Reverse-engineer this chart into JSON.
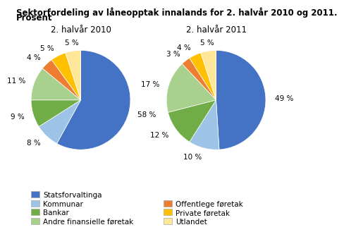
{
  "title_line1": "Sektorfordeling av låneopptak innalands for 2. halvår 2010 og 2011.",
  "title_line2": "Prosent",
  "pie2010": {
    "label": "2. halvår 2010",
    "values": [
      58,
      8,
      9,
      11,
      4,
      5,
      5
    ],
    "pct_labels": [
      "58 %",
      "8 %",
      "9 %",
      "11 %",
      "4 %",
      "5 %",
      "5 %"
    ],
    "colors": [
      "#4472C4",
      "#9DC3E6",
      "#70AD47",
      "#A9D18E",
      "#ED7D31",
      "#FFC000",
      "#FFE699"
    ],
    "startangle": 90
  },
  "pie2011": {
    "label": "2. halvår 2011",
    "values": [
      49,
      10,
      12,
      17,
      3,
      4,
      5
    ],
    "pct_labels": [
      "49 %",
      "10 %",
      "12 %",
      "17 %",
      "3 %",
      "4 %",
      "5 %"
    ],
    "colors": [
      "#4472C4",
      "#9DC3E6",
      "#70AD47",
      "#A9D18E",
      "#ED7D31",
      "#FFC000",
      "#FFE699"
    ],
    "startangle": 90
  },
  "legend_left": [
    {
      "label": "Statsforvaltinga",
      "color": "#4472C4"
    },
    {
      "label": "Kommunar",
      "color": "#9DC3E6"
    },
    {
      "label": "Bankar",
      "color": "#70AD47"
    },
    {
      "label": "Andre finansielle føretak",
      "color": "#A9D18E"
    }
  ],
  "legend_right": [
    {
      "label": "Offentlege føretak",
      "color": "#ED7D31"
    },
    {
      "label": "Private føretak",
      "color": "#FFC000"
    },
    {
      "label": "Utlandet",
      "color": "#FFE699"
    }
  ],
  "title_fontsize": 8.5,
  "subtitle_fontsize": 8.5,
  "label_fontsize": 7.5,
  "legend_fontsize": 7.5
}
